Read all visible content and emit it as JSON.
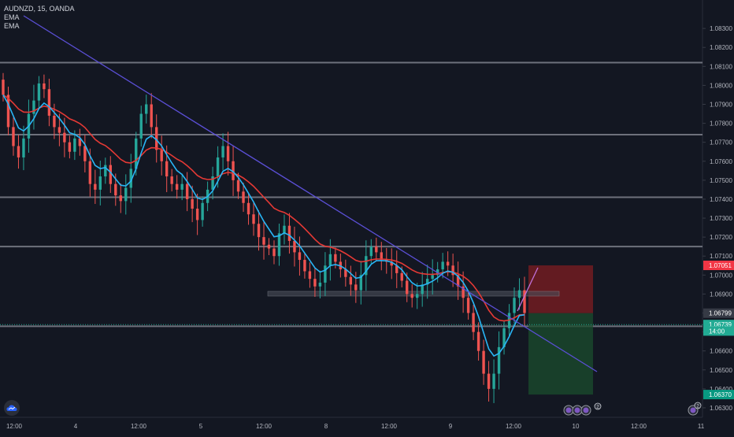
{
  "header": {
    "symbol": "AUDNZD, 15, OANDA",
    "indicator_1": "EMA",
    "indicator_2": "EMA"
  },
  "colors": {
    "background": "#131722",
    "grid_text": "#b2b5be",
    "trendline": "#5b4fd6",
    "ema_slow": "#e53935",
    "ema_fast": "#29b6f6",
    "candle_up": "#26a69a",
    "candle_down": "#ef5350",
    "level_line": "#787b86",
    "risk_zone": "#7f1d22",
    "reward_zone": "#1b4d2e",
    "price_red": "#f23645",
    "price_teal": "#22ab94",
    "price_green": "#089981",
    "price_grey": "#363a45"
  },
  "chart_data": {
    "type": "candlestick",
    "instrument": "AUDNZD",
    "interval": "15",
    "source": "OANDA",
    "ylim": [
      1.0625,
      1.0845
    ],
    "y_ticks": [
      "1.08300",
      "1.08200",
      "1.08100",
      "1.08000",
      "1.07900",
      "1.07800",
      "1.07700",
      "1.07600",
      "1.07500",
      "1.07400",
      "1.07300",
      "1.07200",
      "1.07100",
      "1.07000",
      "1.06900",
      "1.06800",
      "1.06700",
      "1.06600",
      "1.06500",
      "1.06400",
      "1.06300"
    ],
    "x_ticks": [
      "12:00",
      "4",
      "12:00",
      "5",
      "12:00",
      "8",
      "12:00",
      "9",
      "12:00",
      "10",
      "12:00",
      "11"
    ],
    "horizontal_levels": [
      1.0812,
      1.0774,
      1.0741,
      1.0715,
      1.0673
    ],
    "price_labels": [
      {
        "text": "1.07051",
        "value": 1.07051,
        "style": "red"
      },
      {
        "text": "1.06799",
        "value": 1.06799,
        "style": "grey"
      },
      {
        "text": "1.06739",
        "value": 1.06739,
        "style": "teal"
      },
      {
        "text": "14:00",
        "value": 1.06705,
        "style": "teal"
      },
      {
        "text": "1.06370",
        "value": 1.0637,
        "style": "green"
      }
    ],
    "position": {
      "type": "short",
      "entry": 1.06799,
      "stop": 1.07051,
      "target": 1.0637
    },
    "trendline_points": [
      {
        "x": "3 Jan 23:30",
        "y": 1.0843
      },
      {
        "x": "10 Jan 09:45",
        "y": 1.0643
      }
    ],
    "support_zone": {
      "from": "8 Jan 12:15",
      "to": "9 Jan 16:15",
      "low": 1.0689,
      "high": 1.0691
    },
    "series": [
      {
        "type": "candles",
        "key": "close",
        "values": [
          1.0795,
          1.0778,
          1.0768,
          1.0762,
          1.0772,
          1.0785,
          1.0792,
          1.0801,
          1.0798,
          1.0784,
          1.0778,
          1.0775,
          1.077,
          1.0765,
          1.0772,
          1.0768,
          1.076,
          1.0748,
          1.0745,
          1.0752,
          1.0758,
          1.0748,
          1.0742,
          1.0739,
          1.0746,
          1.0756,
          1.0772,
          1.0785,
          1.079,
          1.0778,
          1.0766,
          1.076,
          1.0752,
          1.0748,
          1.0745,
          1.0748,
          1.074,
          1.0735,
          1.0729,
          1.0738,
          1.0745,
          1.0752,
          1.0762,
          1.0768,
          1.076,
          1.075,
          1.0744,
          1.0738,
          1.0732,
          1.0727,
          1.072,
          1.0716,
          1.0714,
          1.071,
          1.0722,
          1.0726,
          1.0718,
          1.0712,
          1.0708,
          1.0702,
          1.0698,
          1.0694,
          1.0696,
          1.0705,
          1.0711,
          1.0707,
          1.0703,
          1.0699,
          1.0695,
          1.0692,
          1.07,
          1.071,
          1.0715,
          1.0712,
          1.0708,
          1.0707,
          1.0705,
          1.0701,
          1.0697,
          1.069,
          1.0688,
          1.069,
          1.0695,
          1.0698,
          1.07,
          1.0703,
          1.0707,
          1.0705,
          1.07,
          1.0694,
          1.0688,
          1.068,
          1.067,
          1.066,
          1.0648,
          1.064,
          1.0648,
          1.0662,
          1.0672,
          1.068,
          1.0688,
          1.0692,
          1.068
        ]
      },
      {
        "type": "line",
        "name": "EMA",
        "key": "ema_slow"
      },
      {
        "type": "line",
        "name": "EMA",
        "key": "ema_fast"
      }
    ]
  },
  "bottom_icons": {
    "events_badge": "2",
    "events_badge_right": "2"
  }
}
